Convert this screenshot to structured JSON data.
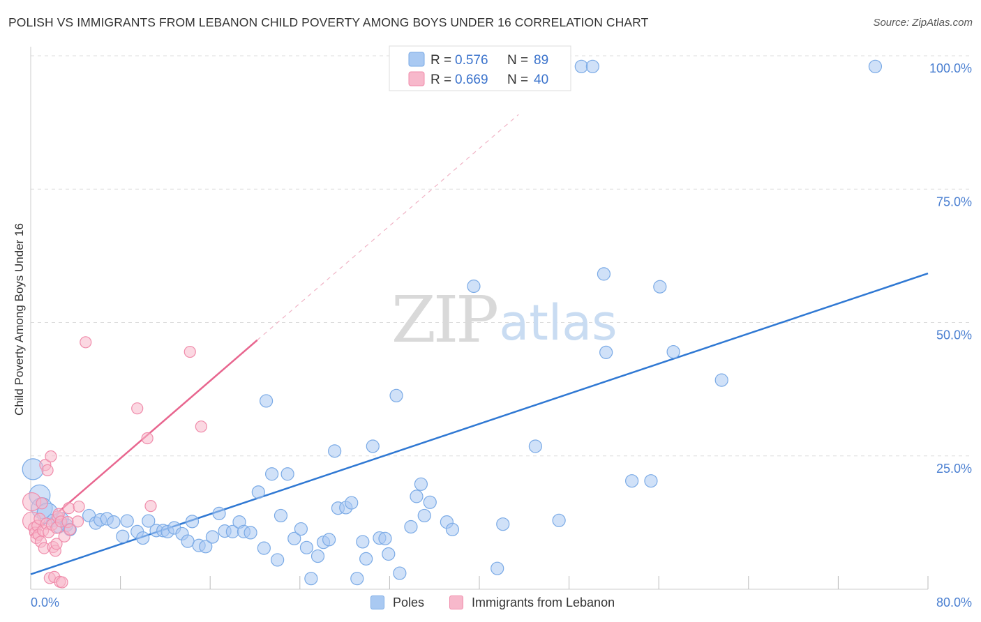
{
  "header": {
    "title": "POLISH VS IMMIGRANTS FROM LEBANON CHILD POVERTY AMONG BOYS UNDER 16 CORRELATION CHART",
    "source": "Source: ZipAtlas.com"
  },
  "watermark": {
    "zip": "ZIP",
    "atlas": "atlas"
  },
  "colors": {
    "poles_fill": "#a9c9f2",
    "poles_stroke": "#7aaae6",
    "poles_line": "#2f78d3",
    "lebanon_fill": "#f7b8cb",
    "lebanon_stroke": "#f08cab",
    "lebanon_line": "#e8668f",
    "axis_label": "#4a7fd1",
    "grid": "#dddddd"
  },
  "chart_data": {
    "type": "scatter",
    "title": "POLISH VS IMMIGRANTS FROM LEBANON CHILD POVERTY AMONG BOYS UNDER 16 CORRELATION CHART",
    "xlabel": "",
    "ylabel": "Child Poverty Among Boys Under 16",
    "xlim": [
      0,
      80
    ],
    "ylim": [
      0,
      100
    ],
    "x_tick_labels": [
      "0.0%",
      "80.0%"
    ],
    "y_tick_labels": [
      {
        "value": 25,
        "label": "25.0%"
      },
      {
        "value": 50,
        "label": "50.0%"
      },
      {
        "value": 75,
        "label": "75.0%"
      },
      {
        "value": 100,
        "label": "100.0%"
      }
    ],
    "legend": [
      {
        "name": "Poles",
        "r_label": "R =",
        "r": "0.576",
        "n_label": "N =",
        "n": "89"
      },
      {
        "name": "Immigrants from Lebanon",
        "r_label": "R =",
        "r": "0.669",
        "n_label": "N =",
        "n": "40"
      }
    ],
    "series": [
      {
        "name": "Poles",
        "trend": {
          "x0": 0,
          "y0": 2.8,
          "x1": 80,
          "y1": 59.2
        },
        "points": [
          {
            "x": 0.2,
            "y": 22.5,
            "s": "l"
          },
          {
            "x": 0.8,
            "y": 17.6,
            "s": "l"
          },
          {
            "x": 1.0,
            "y": 15.2,
            "s": "l"
          },
          {
            "x": 1.5,
            "y": 14.2,
            "s": "l"
          },
          {
            "x": 2.0,
            "y": 12.9
          },
          {
            "x": 2.5,
            "y": 11.7
          },
          {
            "x": 2.8,
            "y": 13.2
          },
          {
            "x": 3.2,
            "y": 12.0
          },
          {
            "x": 3.5,
            "y": 11.2
          },
          {
            "x": 5.2,
            "y": 13.8
          },
          {
            "x": 5.8,
            "y": 12.4
          },
          {
            "x": 6.2,
            "y": 13.0
          },
          {
            "x": 6.8,
            "y": 13.2
          },
          {
            "x": 7.4,
            "y": 12.6
          },
          {
            "x": 8.2,
            "y": 9.9
          },
          {
            "x": 8.6,
            "y": 12.8
          },
          {
            "x": 9.5,
            "y": 10.8
          },
          {
            "x": 10.0,
            "y": 9.6
          },
          {
            "x": 10.5,
            "y": 12.8
          },
          {
            "x": 11.2,
            "y": 11.0
          },
          {
            "x": 11.8,
            "y": 11.0
          },
          {
            "x": 12.2,
            "y": 10.8
          },
          {
            "x": 12.8,
            "y": 11.5
          },
          {
            "x": 13.5,
            "y": 10.4
          },
          {
            "x": 14.0,
            "y": 9.0
          },
          {
            "x": 14.4,
            "y": 12.7
          },
          {
            "x": 15.0,
            "y": 8.2
          },
          {
            "x": 15.6,
            "y": 8.0
          },
          {
            "x": 16.2,
            "y": 9.8
          },
          {
            "x": 16.8,
            "y": 14.2
          },
          {
            "x": 17.3,
            "y": 10.9
          },
          {
            "x": 18.0,
            "y": 10.8
          },
          {
            "x": 18.6,
            "y": 12.6
          },
          {
            "x": 19.0,
            "y": 10.8
          },
          {
            "x": 19.6,
            "y": 10.6
          },
          {
            "x": 20.3,
            "y": 18.2
          },
          {
            "x": 20.8,
            "y": 7.7
          },
          {
            "x": 21.0,
            "y": 35.3
          },
          {
            "x": 21.5,
            "y": 21.6
          },
          {
            "x": 22.0,
            "y": 5.5
          },
          {
            "x": 22.3,
            "y": 13.8
          },
          {
            "x": 22.9,
            "y": 21.6
          },
          {
            "x": 23.5,
            "y": 9.5
          },
          {
            "x": 24.1,
            "y": 11.3
          },
          {
            "x": 24.6,
            "y": 7.8
          },
          {
            "x": 25.0,
            "y": 2.0
          },
          {
            "x": 25.6,
            "y": 6.2
          },
          {
            "x": 26.1,
            "y": 8.8
          },
          {
            "x": 26.6,
            "y": 9.3
          },
          {
            "x": 27.1,
            "y": 25.9
          },
          {
            "x": 27.4,
            "y": 15.2
          },
          {
            "x": 28.1,
            "y": 15.3
          },
          {
            "x": 28.6,
            "y": 16.2
          },
          {
            "x": 29.1,
            "y": 2.0
          },
          {
            "x": 29.6,
            "y": 8.9
          },
          {
            "x": 29.9,
            "y": 5.7
          },
          {
            "x": 30.5,
            "y": 26.8
          },
          {
            "x": 31.1,
            "y": 9.6
          },
          {
            "x": 31.6,
            "y": 9.5
          },
          {
            "x": 31.9,
            "y": 6.6
          },
          {
            "x": 32.6,
            "y": 36.3
          },
          {
            "x": 32.9,
            "y": 3.0
          },
          {
            "x": 33.9,
            "y": 11.7
          },
          {
            "x": 34.4,
            "y": 17.4
          },
          {
            "x": 34.8,
            "y": 19.7
          },
          {
            "x": 35.1,
            "y": 13.8
          },
          {
            "x": 35.6,
            "y": 16.3
          },
          {
            "x": 37.1,
            "y": 12.6
          },
          {
            "x": 37.6,
            "y": 11.2
          },
          {
            "x": 39.5,
            "y": 56.8
          },
          {
            "x": 41.6,
            "y": 3.9
          },
          {
            "x": 42.1,
            "y": 12.2
          },
          {
            "x": 45.0,
            "y": 26.8
          },
          {
            "x": 47.1,
            "y": 12.9
          },
          {
            "x": 49.1,
            "y": 98.0
          },
          {
            "x": 50.1,
            "y": 98.0
          },
          {
            "x": 51.1,
            "y": 59.1
          },
          {
            "x": 51.3,
            "y": 44.4
          },
          {
            "x": 53.6,
            "y": 20.3
          },
          {
            "x": 55.3,
            "y": 20.3
          },
          {
            "x": 56.1,
            "y": 56.7
          },
          {
            "x": 57.3,
            "y": 44.5
          },
          {
            "x": 61.6,
            "y": 39.2
          },
          {
            "x": 75.3,
            "y": 98.0
          }
        ]
      },
      {
        "name": "Immigrants from Lebanon",
        "trend": {
          "x0": 0,
          "y0": 10.0,
          "x1": 20.2,
          "y1": 46.7
        },
        "dashed_extension": {
          "x0": 20.2,
          "y0": 46.7,
          "x1": 43.5,
          "y1": 89.0
        },
        "points": [
          {
            "x": 0.1,
            "y": 16.4,
            "s": "l"
          },
          {
            "x": 0.1,
            "y": 12.8,
            "s": "l"
          },
          {
            "x": 0.3,
            "y": 11.5
          },
          {
            "x": 0.4,
            "y": 10.6
          },
          {
            "x": 0.5,
            "y": 9.6
          },
          {
            "x": 0.6,
            "y": 11.9
          },
          {
            "x": 0.7,
            "y": 10.2
          },
          {
            "x": 0.8,
            "y": 13.2
          },
          {
            "x": 0.9,
            "y": 8.9
          },
          {
            "x": 1.0,
            "y": 16.1
          },
          {
            "x": 1.1,
            "y": 11.0
          },
          {
            "x": 1.2,
            "y": 7.7
          },
          {
            "x": 1.3,
            "y": 23.3
          },
          {
            "x": 1.4,
            "y": 12.3
          },
          {
            "x": 1.5,
            "y": 22.3
          },
          {
            "x": 1.6,
            "y": 10.7
          },
          {
            "x": 1.7,
            "y": 2.1
          },
          {
            "x": 1.8,
            "y": 24.9
          },
          {
            "x": 1.9,
            "y": 12.1
          },
          {
            "x": 2.0,
            "y": 7.9
          },
          {
            "x": 2.1,
            "y": 2.3
          },
          {
            "x": 2.2,
            "y": 7.2
          },
          {
            "x": 2.3,
            "y": 8.5
          },
          {
            "x": 2.3,
            "y": 11.5
          },
          {
            "x": 2.4,
            "y": 13.6
          },
          {
            "x": 2.5,
            "y": 14.1
          },
          {
            "x": 2.6,
            "y": 1.4
          },
          {
            "x": 2.7,
            "y": 12.7
          },
          {
            "x": 2.8,
            "y": 1.3
          },
          {
            "x": 3.0,
            "y": 9.9
          },
          {
            "x": 3.3,
            "y": 12.6
          },
          {
            "x": 3.4,
            "y": 15.2
          },
          {
            "x": 3.5,
            "y": 11.2
          },
          {
            "x": 4.2,
            "y": 12.7
          },
          {
            "x": 4.3,
            "y": 15.5
          },
          {
            "x": 4.9,
            "y": 46.3
          },
          {
            "x": 9.5,
            "y": 33.9
          },
          {
            "x": 10.4,
            "y": 28.3
          },
          {
            "x": 10.7,
            "y": 15.6
          },
          {
            "x": 14.2,
            "y": 44.5
          },
          {
            "x": 15.2,
            "y": 30.5
          }
        ]
      }
    ]
  }
}
